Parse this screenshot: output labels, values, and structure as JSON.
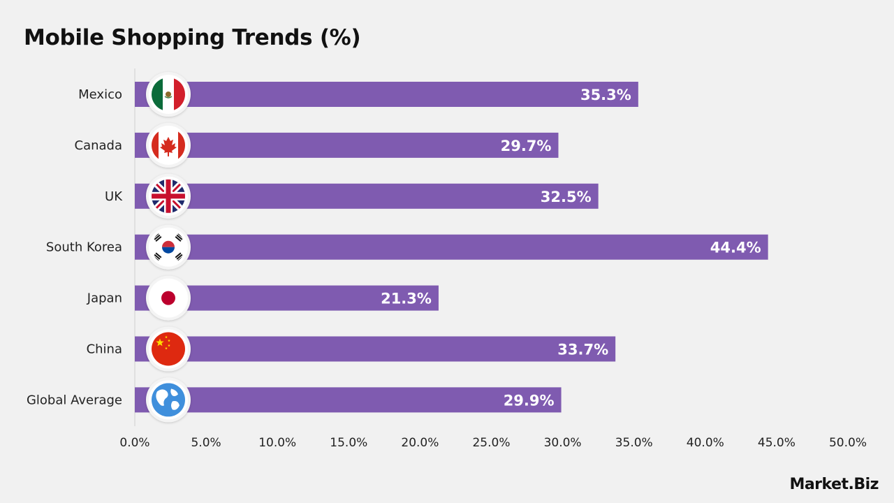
{
  "chart_data": {
    "type": "bar",
    "orientation": "horizontal",
    "title": "Mobile Shopping Trends (%)",
    "categories": [
      "Mexico",
      "Canada",
      "UK",
      "South Korea",
      "Japan",
      "China",
      "Global Average"
    ],
    "values": [
      35.3,
      29.7,
      32.5,
      44.4,
      21.3,
      33.7,
      29.9
    ],
    "value_labels": [
      "35.3%",
      "29.7%",
      "32.5%",
      "44.4%",
      "21.3%",
      "33.7%",
      "29.9%"
    ],
    "flag_icons": [
      "mexico-flag-icon",
      "canada-flag-icon",
      "uk-flag-icon",
      "south-korea-flag-icon",
      "japan-flag-icon",
      "china-flag-icon",
      "globe-icon"
    ],
    "xlim": [
      0,
      50
    ],
    "xticks": [
      0,
      5,
      10,
      15,
      20,
      25,
      30,
      35,
      40,
      45,
      50
    ],
    "xtick_labels": [
      "0.0%",
      "5.0%",
      "10.0%",
      "15.0%",
      "20.0%",
      "25.0%",
      "30.0%",
      "35.0%",
      "40.0%",
      "45.0%",
      "50.0%"
    ],
    "bar_color": "#7f5bb0",
    "grid": false,
    "legend": "none"
  },
  "brand": {
    "name_left": "Market",
    "name_right": ".Biz"
  }
}
